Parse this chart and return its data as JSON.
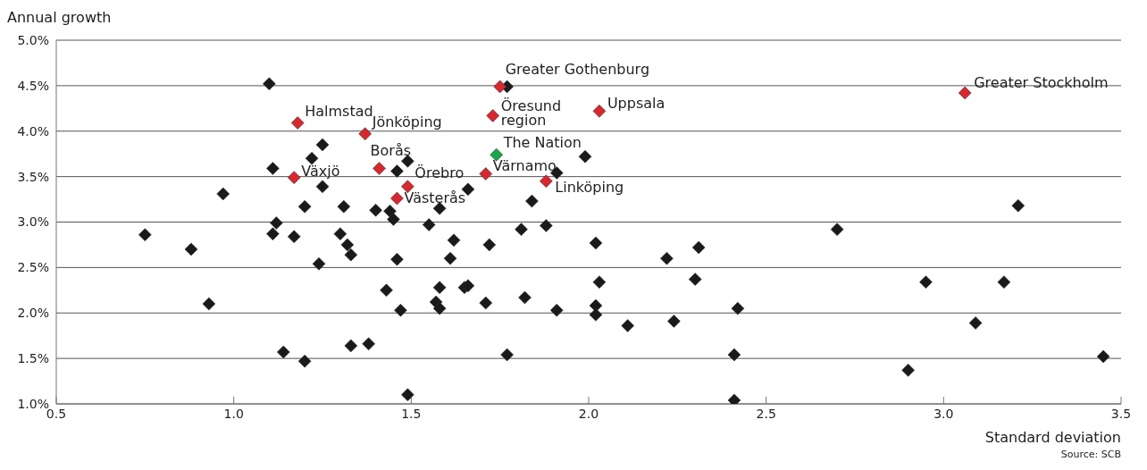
{
  "chart_data": {
    "type": "scatter",
    "ylabel": "Annual growth",
    "xlabel": "Standard deviation",
    "xlim": [
      0.5,
      3.5
    ],
    "xticks": [
      0.5,
      {
        "value": 1,
        "label": "1.0"
      },
      1.5,
      {
        "value": 2,
        "label": "2.0"
      },
      2.5,
      {
        "value": 3,
        "label": "3.0"
      },
      3.5
    ],
    "ylim": [
      1,
      5
    ],
    "yticks": [
      {
        "value": 1,
        "label": "1.0%"
      },
      {
        "value": 1.5,
        "label": "1.5%"
      },
      {
        "value": 2,
        "label": "2.0%"
      },
      {
        "value": 2.5,
        "label": "2.5%"
      },
      {
        "value": 3,
        "label": "3.0%"
      },
      {
        "value": 3.5,
        "label": "3.5%"
      },
      {
        "value": 4,
        "label": "4.0%"
      },
      {
        "value": 4.5,
        "label": "4.5%"
      },
      {
        "value": 5,
        "label": "5.0%"
      }
    ],
    "grid": "y",
    "marker": "diamond",
    "series": [
      {
        "color": "#1a1a1a",
        "x": [
          0.75,
          0.88,
          0.93,
          0.97,
          1.1,
          1.11,
          1.11,
          1.12,
          1.14,
          1.17,
          1.2,
          1.2,
          1.22,
          1.25,
          1.25,
          1.24,
          1.3,
          1.31,
          1.32,
          1.33,
          1.33,
          1.38,
          1.4,
          1.43,
          1.44,
          1.45,
          1.46,
          1.46,
          1.47,
          1.49,
          1.49,
          1.55,
          1.58,
          1.58,
          1.57,
          1.58,
          1.62,
          1.61,
          1.65,
          1.66,
          1.66,
          1.72,
          1.71,
          1.77,
          1.77,
          1.81,
          1.82,
          1.84,
          1.88,
          1.91,
          1.91,
          1.99,
          2.02,
          2.02,
          2.02,
          2.03,
          2.11,
          2.22,
          2.24,
          2.31,
          2.3,
          2.41,
          2.41,
          2.42,
          2.7,
          2.95,
          2.9,
          3.09,
          3.17,
          3.21,
          3.45
        ],
        "values": [
          2.86,
          2.7,
          2.1,
          3.31,
          4.52,
          3.59,
          2.87,
          2.99,
          1.57,
          2.84,
          3.17,
          1.47,
          3.7,
          3.85,
          3.39,
          2.54,
          2.87,
          3.17,
          2.75,
          2.64,
          1.64,
          1.66,
          3.13,
          2.25,
          3.12,
          3.03,
          3.56,
          2.59,
          2.03,
          3.67,
          1.1,
          2.97,
          3.15,
          2.28,
          2.12,
          2.05,
          2.8,
          2.6,
          2.28,
          2.3,
          3.36,
          2.75,
          2.11,
          4.49,
          1.54,
          2.92,
          2.17,
          3.23,
          2.96,
          3.54,
          2.03,
          3.72,
          2.77,
          2.08,
          1.98,
          2.34,
          1.86,
          2.6,
          1.91,
          2.72,
          2.37,
          1.54,
          1.04,
          2.05,
          2.92,
          2.34,
          1.37,
          1.89,
          2.34,
          3.18,
          1.52
        ]
      },
      {
        "color": "#d7282f",
        "x": [
          1.18,
          1.37,
          1.17,
          1.41,
          1.49,
          1.46,
          1.75,
          1.73,
          2.03,
          1.71,
          1.88,
          3.06
        ],
        "values": [
          4.09,
          3.97,
          3.49,
          3.59,
          3.39,
          3.26,
          4.49,
          4.17,
          4.22,
          3.53,
          3.45,
          4.42
        ]
      },
      {
        "color": "#1aa64a",
        "x": [
          1.74
        ],
        "values": [
          3.74
        ]
      }
    ],
    "annotations": [
      {
        "text": "Halmstad",
        "x": 1.18,
        "y": 4.09
      },
      {
        "text": "Jönköping",
        "x": 1.37,
        "y": 3.97
      },
      {
        "text": "Växjö",
        "x": 1.17,
        "y": 3.49
      },
      {
        "text": "Borås",
        "x": 1.41,
        "y": 3.59
      },
      {
        "text": "Örebro",
        "x": 1.49,
        "y": 3.39
      },
      {
        "text": "Västerås",
        "x": 1.46,
        "y": 3.26
      },
      {
        "text": "Greater Gothenburg",
        "x": 1.75,
        "y": 4.49
      },
      {
        "text": "Öresund region",
        "x": 1.73,
        "y": 4.17
      },
      {
        "text": "Uppsala",
        "x": 2.03,
        "y": 4.22
      },
      {
        "text": "Värnamo",
        "x": 1.71,
        "y": 3.53
      },
      {
        "text": "Linköping",
        "x": 1.88,
        "y": 3.45
      },
      {
        "text": "Greater Stockholm",
        "x": 3.06,
        "y": 4.42
      },
      {
        "text": "The Nation",
        "x": 1.74,
        "y": 3.74
      },
      "Source: SCB"
    ]
  }
}
